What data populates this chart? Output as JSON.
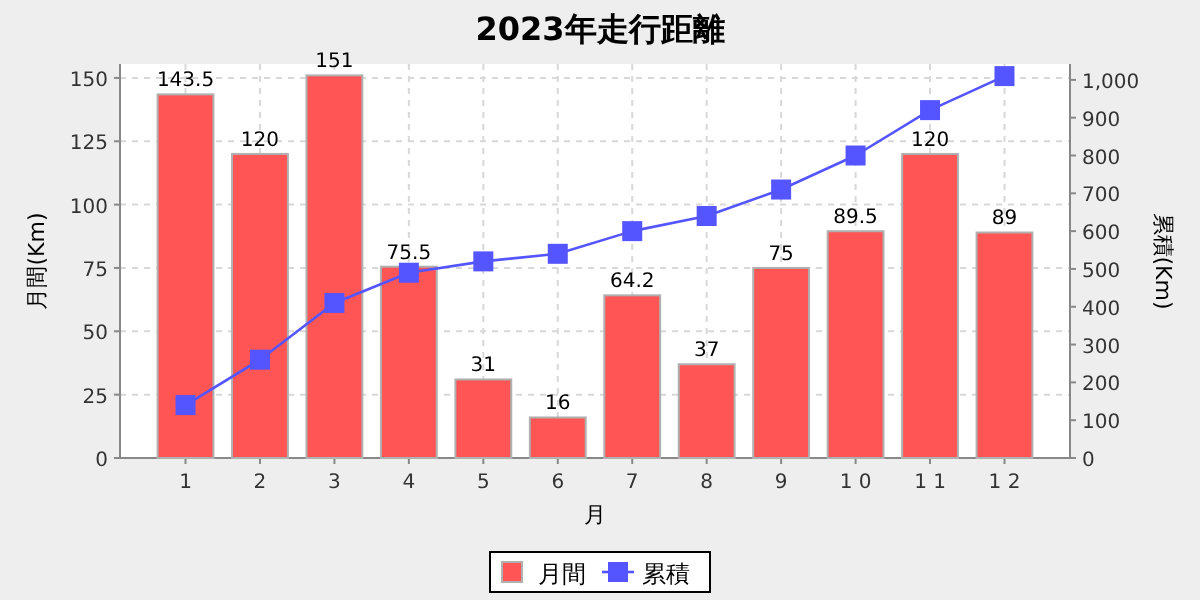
{
  "chart_data": {
    "type": "bar",
    "title": "2023年走行距離",
    "xlabel": "月",
    "ylabel": "月間(Km)",
    "y2label": "累積(Km)",
    "categories": [
      "1",
      "2",
      "3",
      "4",
      "5",
      "6",
      "7",
      "8",
      "9",
      "1 0",
      "1 1",
      "1 2"
    ],
    "series": [
      {
        "name": "月間",
        "color": "#ff5555",
        "values": [
          143.5,
          120,
          151,
          75.5,
          31,
          16,
          64.2,
          37,
          75,
          89.5,
          120,
          89
        ],
        "value_labels": [
          "143.5",
          "120",
          "151",
          "75.5",
          "31",
          "16",
          "64.2",
          "37",
          "75",
          "89.5",
          "120",
          "89"
        ]
      },
      {
        "name": "累積",
        "type": "line",
        "axis": "y2",
        "color": "#5555ff",
        "marker": "square",
        "values": [
          140,
          260,
          410,
          490,
          520,
          540,
          600,
          640,
          710,
          800,
          920,
          1010
        ]
      }
    ],
    "ylim": [
      0,
      155.5
    ],
    "yticks": [
      0,
      25,
      50,
      75,
      100,
      125,
      150
    ],
    "y2lim": [
      0,
      1042
    ],
    "y2ticks": [
      0,
      100,
      200,
      300,
      400,
      500,
      600,
      700,
      800,
      900,
      {
        "value": 1000,
        "label": "1,000"
      }
    ],
    "grid": true,
    "legend": "bottom"
  }
}
